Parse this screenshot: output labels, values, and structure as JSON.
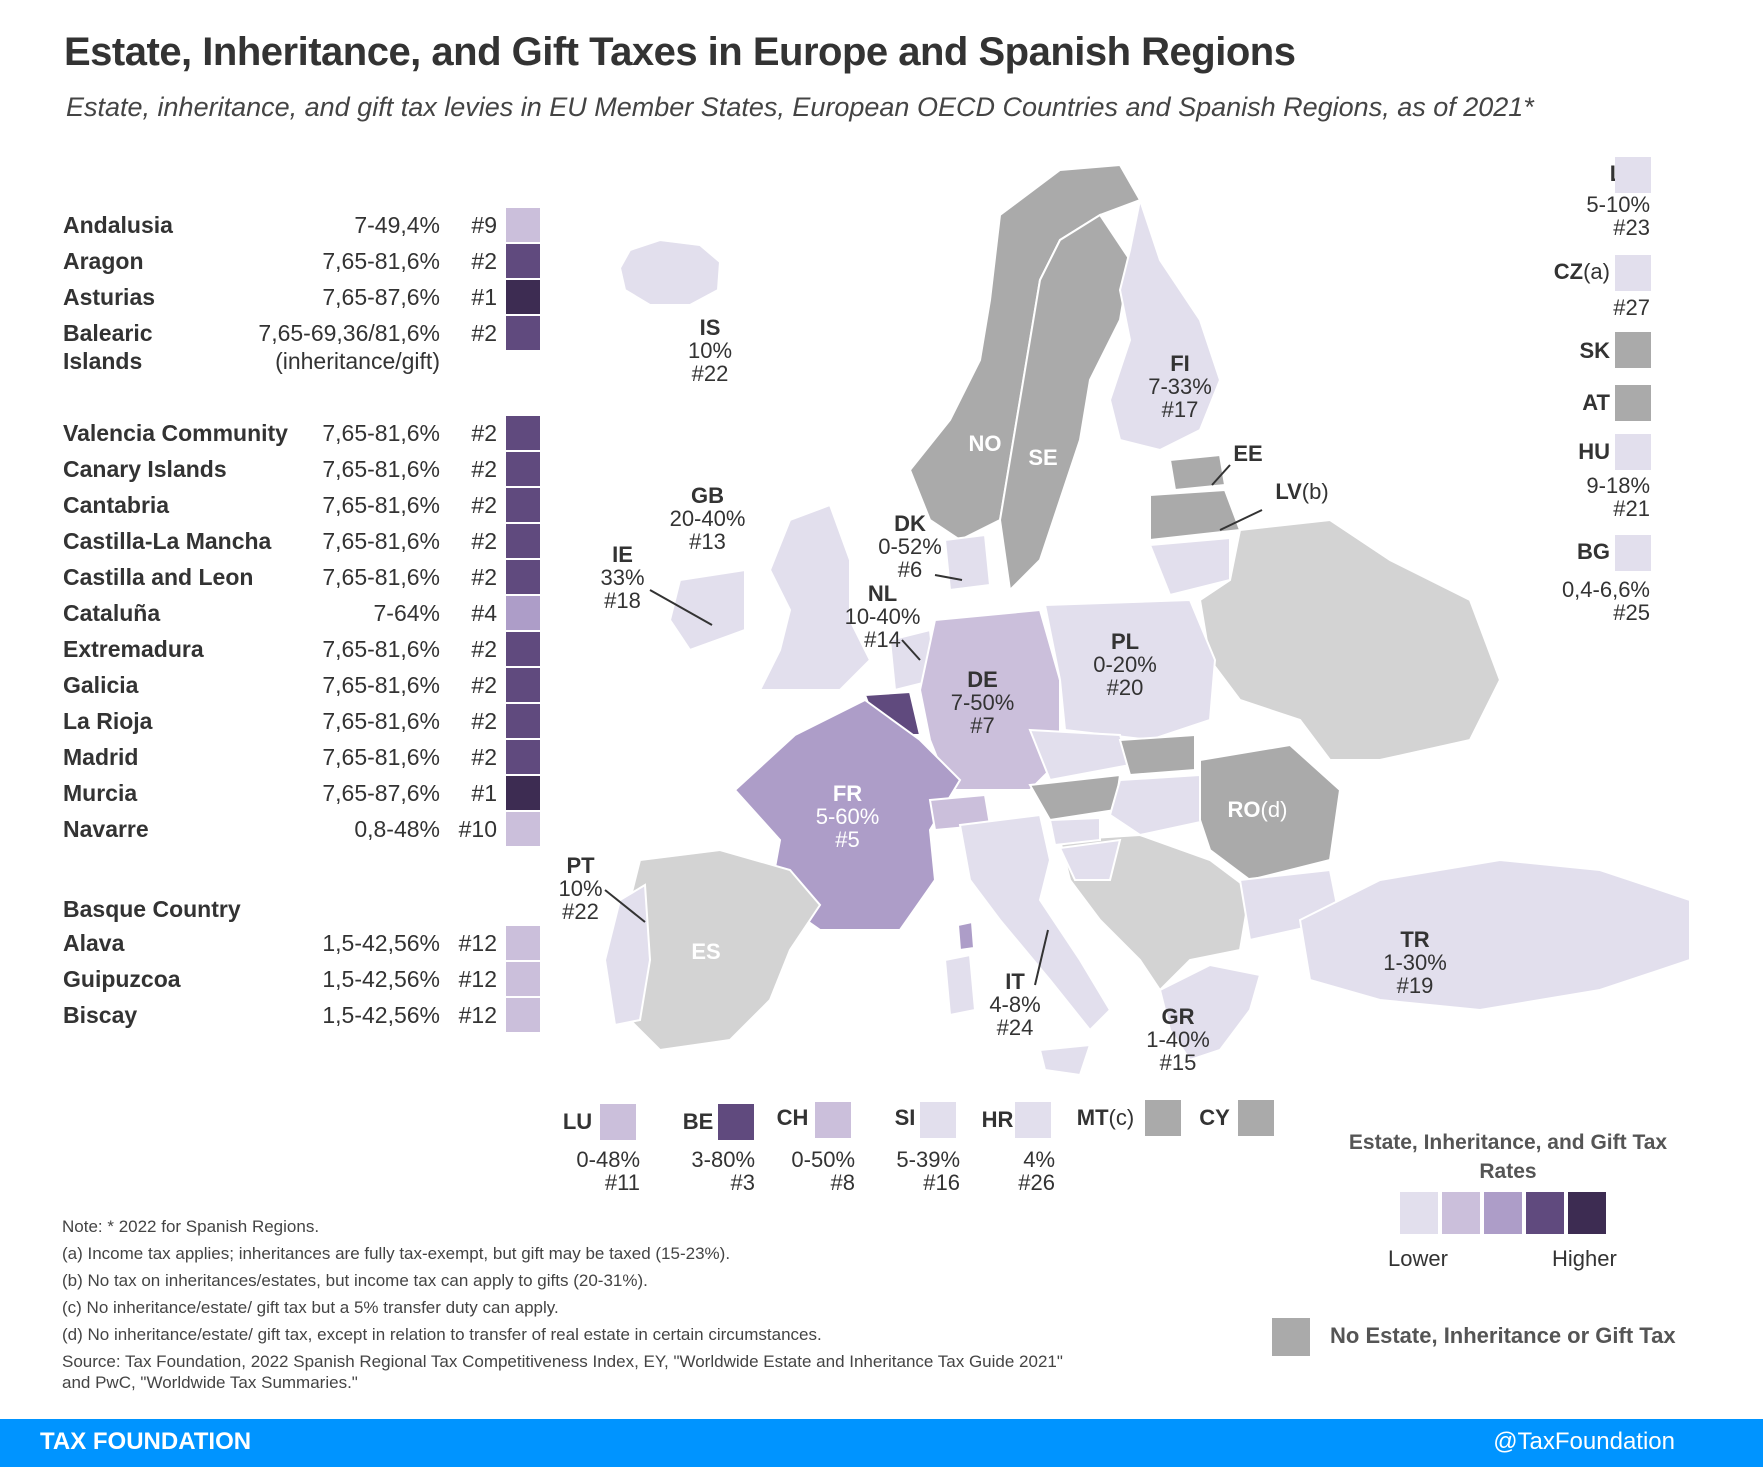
{
  "title": "Estate, Inheritance, and Gift Taxes in Europe and Spanish Regions",
  "subtitle": "Estate, inheritance, and gift tax levies in EU Member States, European OECD Countries and Spanish Regions, as of 2021*",
  "colors": {
    "level1": "#e2dfed",
    "level2": "#cbbfdb",
    "level3": "#ad9dc8",
    "level4": "#604a7e",
    "level5": "#3d2c52",
    "no_tax": "#aaaaaa",
    "other_land": "#d3d3d3",
    "footer": "#0094ff"
  },
  "regions": [
    {
      "name": "Andalusia",
      "rate": "7-49,4%",
      "rank": "#9",
      "level": "level2"
    },
    {
      "name": "Aragon",
      "rate": "7,65-81,6%",
      "rank": "#2",
      "level": "level4"
    },
    {
      "name": "Asturias",
      "rate": "7,65-87,6%",
      "rank": "#1",
      "level": "level5"
    },
    {
      "name": "Balearic",
      "name2": "Islands",
      "rate": "7,65-69,36/81,6%",
      "rate2": "(inheritance/gift)",
      "rank": "#2",
      "level": "level4"
    },
    {
      "name": "Valencia Community",
      "rate": "7,65-81,6%",
      "rank": "#2",
      "level": "level4"
    },
    {
      "name": "Canary Islands",
      "rate": "7,65-81,6%",
      "rank": "#2",
      "level": "level4"
    },
    {
      "name": "Cantabria",
      "rate": "7,65-81,6%",
      "rank": "#2",
      "level": "level4"
    },
    {
      "name": "Castilla-La Mancha",
      "rate": "7,65-81,6%",
      "rank": "#2",
      "level": "level4"
    },
    {
      "name": "Castilla and Leon",
      "rate": "7,65-81,6%",
      "rank": "#2",
      "level": "level4"
    },
    {
      "name": "Cataluña",
      "rate": "7-64%",
      "rank": "#4",
      "level": "level3"
    },
    {
      "name": "Extremadura",
      "rate": "7,65-81,6%",
      "rank": "#2",
      "level": "level4"
    },
    {
      "name": "Galicia",
      "rate": "7,65-81,6%",
      "rank": "#2",
      "level": "level4"
    },
    {
      "name": "La Rioja",
      "rate": "7,65-81,6%",
      "rank": "#2",
      "level": "level4"
    },
    {
      "name": "Madrid",
      "rate": "7,65-81,6%",
      "rank": "#2",
      "level": "level4"
    },
    {
      "name": "Murcia",
      "rate": "7,65-87,6%",
      "rank": "#1",
      "level": "level5"
    },
    {
      "name": "Navarre",
      "rate": "0,8-48%",
      "rank": "#10",
      "level": "level2"
    },
    {
      "name": "Basque Country"
    },
    {
      "name": "Alava",
      "rate": "1,5-42,56%",
      "rank": "#12",
      "level": "level2"
    },
    {
      "name": "Guipuzcoa",
      "rate": "1,5-42,56%",
      "rank": "#12",
      "level": "level2"
    },
    {
      "name": "Biscay",
      "rate": "1,5-42,56%",
      "rank": "#12",
      "level": "level2"
    }
  ],
  "countries": {
    "IS": {
      "code": "IS",
      "rate": "10%",
      "rank": "#22"
    },
    "FI": {
      "code": "FI",
      "rate": "7-33%",
      "rank": "#17"
    },
    "NO": {
      "code": "NO"
    },
    "SE": {
      "code": "SE"
    },
    "EE": {
      "code": "EE"
    },
    "LV": {
      "code": "LV",
      "note": "(b)"
    },
    "GB": {
      "code": "GB",
      "rate": "20-40%",
      "rank": "#13"
    },
    "DK": {
      "code": "DK",
      "rate": "0-52%",
      "rank": "#6"
    },
    "IE": {
      "code": "IE",
      "rate": "33%",
      "rank": "#18"
    },
    "NL": {
      "code": "NL",
      "rate": "10-40%",
      "rank": "#14"
    },
    "PL": {
      "code": "PL",
      "rate": "0-20%",
      "rank": "#20"
    },
    "DE": {
      "code": "DE",
      "rate": "7-50%",
      "rank": "#7"
    },
    "FR": {
      "code": "FR",
      "rate": "5-60%",
      "rank": "#5"
    },
    "RO": {
      "code": "RO",
      "note": "(d)"
    },
    "PT": {
      "code": "PT",
      "rate": "10%",
      "rank": "#22"
    },
    "ES": {
      "code": "ES"
    },
    "IT": {
      "code": "IT",
      "rate": "4-8%",
      "rank": "#24"
    },
    "TR": {
      "code": "TR",
      "rate": "1-30%",
      "rank": "#19"
    },
    "GR": {
      "code": "GR",
      "rate": "1-40%",
      "rank": "#15"
    }
  },
  "side_list": [
    {
      "code": "LT",
      "rate": "5-10%",
      "rank": "#23",
      "level": "level1"
    },
    {
      "code": "CZ",
      "note": "(a)",
      "rank": "#27",
      "level": "level1"
    },
    {
      "code": "SK",
      "level": "no_tax"
    },
    {
      "code": "AT",
      "level": "no_tax"
    },
    {
      "code": "HU",
      "rate": "9-18%",
      "rank": "#21",
      "level": "level1"
    },
    {
      "code": "BG",
      "rate": "0,4-6,6%",
      "rank": "#25",
      "level": "level1"
    }
  ],
  "bottom_list": [
    {
      "code": "LU",
      "rate": "0-48%",
      "rank": "#11",
      "level": "level2"
    },
    {
      "code": "BE",
      "rate": "3-80%",
      "rank": "#3",
      "level": "level4"
    },
    {
      "code": "CH",
      "rate": "0-50%",
      "rank": "#8",
      "level": "level2"
    },
    {
      "code": "SI",
      "rate": "5-39%",
      "rank": "#16",
      "level": "level1"
    },
    {
      "code": "HR",
      "rate": "4%",
      "rank": "#26",
      "level": "level1"
    },
    {
      "code": "MT",
      "note": "(c)",
      "level": "no_tax"
    },
    {
      "code": "CY",
      "level": "no_tax"
    }
  ],
  "legend": {
    "title": "Estate, Inheritance, and Gift Tax Rates",
    "lower": "Lower",
    "higher": "Higher",
    "no_tax": "No Estate, Inheritance or Gift Tax"
  },
  "notes": [
    "Note: * 2022 for Spanish Regions.",
    "(a) Income tax applies; inheritances are fully tax-exempt, but gift may be taxed (15-23%).",
    "(b) No tax on inheritances/estates, but income tax can apply to gifts (20-31%).",
    "(c) No inheritance/estate/ gift tax but a 5% transfer duty can apply.",
    "(d) No inheritance/estate/ gift tax, except in relation to transfer of real estate in certain circumstances.",
    "Source: Tax Foundation, 2022 Spanish Regional Tax Competitiveness Index, EY, \"Worldwide Estate and Inheritance Tax Guide 2021\"",
    "and PwC, \"Worldwide Tax Summaries.\""
  ],
  "footer": {
    "left": "TAX FOUNDATION",
    "right": "@TaxFoundation"
  }
}
